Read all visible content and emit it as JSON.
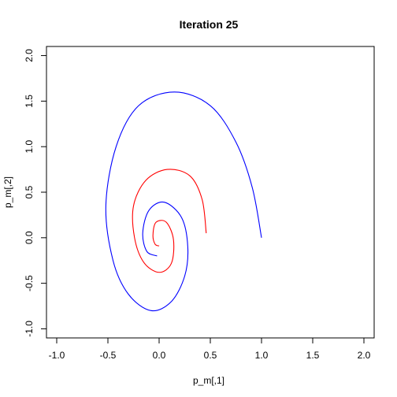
{
  "chart_data": {
    "type": "line",
    "title": "Iteration 25",
    "xlabel": "p_m[,1]",
    "ylabel": "p_m[,2]",
    "xlim": [
      -1.1,
      2.1
    ],
    "ylim": [
      -1.1,
      2.1
    ],
    "x_ticks": [
      -1.0,
      -0.5,
      0.0,
      0.5,
      1.0,
      1.5,
      2.0
    ],
    "y_ticks": [
      -1.0,
      -0.5,
      0.0,
      0.5,
      1.0,
      1.5,
      2.0
    ],
    "x_tick_labels": [
      "-1.0",
      "-0.5",
      "0.0",
      "0.5",
      "1.0",
      "1.5",
      "2.0"
    ],
    "y_tick_labels": [
      "-1.0",
      "-0.5",
      "0.0",
      "0.5",
      "1.0",
      "1.5",
      "2.0"
    ],
    "grid": false,
    "legend": "none",
    "series": [
      {
        "color": "#0000ff",
        "points": [
          [
            1.0,
            0.0
          ],
          [
            0.91,
            0.55
          ],
          [
            0.75,
            1.05
          ],
          [
            0.5,
            1.45
          ],
          [
            0.15,
            1.6
          ],
          [
            -0.2,
            1.45
          ],
          [
            -0.42,
            1.0
          ],
          [
            -0.52,
            0.35
          ],
          [
            -0.45,
            -0.25
          ],
          [
            -0.3,
            -0.62
          ],
          [
            -0.08,
            -0.8
          ],
          [
            0.12,
            -0.7
          ],
          [
            0.25,
            -0.42
          ],
          [
            0.28,
            -0.1
          ],
          [
            0.22,
            0.22
          ],
          [
            0.05,
            0.39
          ],
          [
            -0.1,
            0.3
          ],
          [
            -0.16,
            0.05
          ],
          [
            -0.12,
            -0.15
          ],
          [
            -0.02,
            -0.2
          ]
        ]
      },
      {
        "color": "#ff0000",
        "points": [
          [
            0.46,
            0.05
          ],
          [
            0.42,
            0.42
          ],
          [
            0.3,
            0.68
          ],
          [
            0.08,
            0.75
          ],
          [
            -0.13,
            0.63
          ],
          [
            -0.25,
            0.35
          ],
          [
            -0.24,
            0.0
          ],
          [
            -0.15,
            -0.27
          ],
          [
            0.0,
            -0.38
          ],
          [
            0.12,
            -0.28
          ],
          [
            0.14,
            -0.02
          ],
          [
            0.07,
            0.17
          ],
          [
            -0.03,
            0.17
          ],
          [
            -0.06,
            0.03
          ],
          [
            -0.04,
            -0.07
          ],
          [
            0.0,
            -0.09
          ]
        ]
      }
    ]
  }
}
